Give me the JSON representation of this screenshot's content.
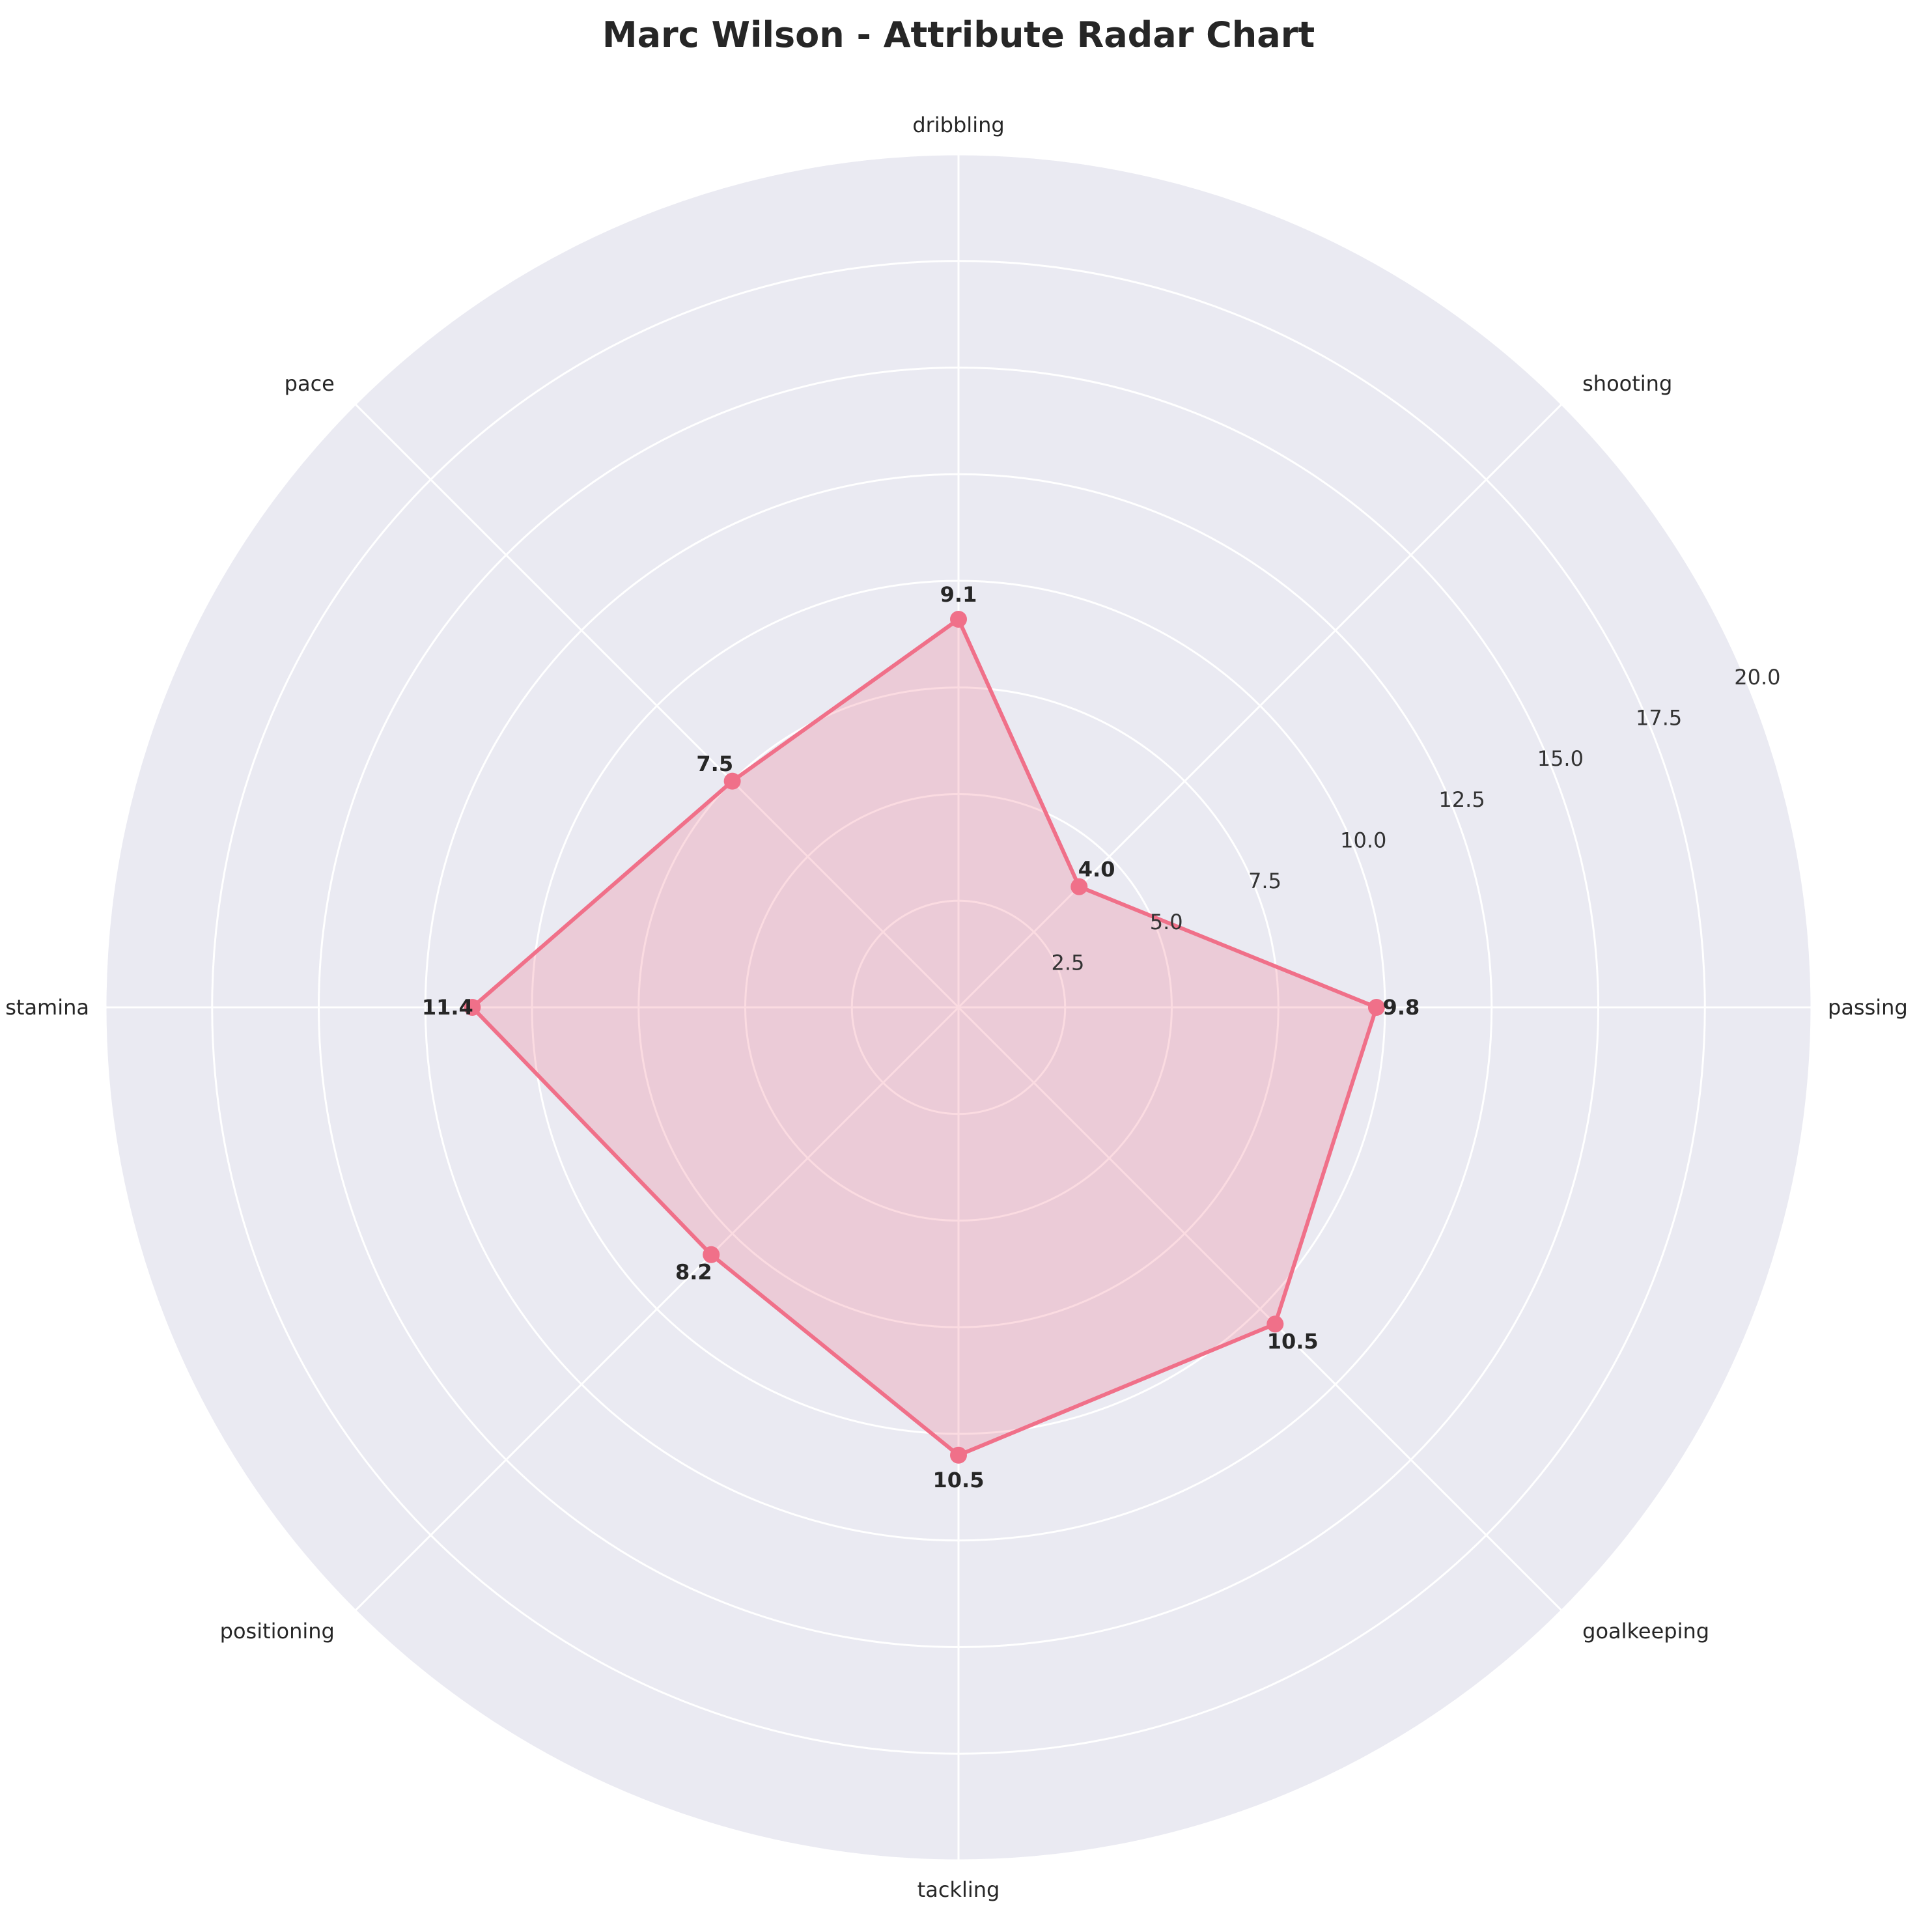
{
  "chart_data": {
    "type": "radar",
    "title": "Marc Wilson - Attribute Radar Chart",
    "categories": [
      "passing",
      "shooting",
      "dribbling",
      "pace",
      "stamina",
      "positioning",
      "tackling",
      "goalkeeping"
    ],
    "series": [
      {
        "values": [
          9.8,
          4.0,
          9.1,
          7.5,
          11.4,
          8.2,
          10.5,
          10.5
        ]
      }
    ],
    "data_labels": [
      "9.8",
      "4.0",
      "9.1",
      "7.5",
      "11.4",
      "8.2",
      "10.5",
      "10.5"
    ],
    "rlim": [
      0,
      20
    ],
    "rticks": [
      2.5,
      5.0,
      7.5,
      10.0,
      12.5,
      15.0,
      17.5,
      20.0
    ],
    "rtick_labels": [
      "2.5",
      "5.0",
      "7.5",
      "10.0",
      "12.5",
      "15.0",
      "17.5",
      "20.0"
    ],
    "grid": true,
    "colors": {
      "series": "#f07089",
      "fill": "#f07089",
      "background": "#eaeaf2",
      "grid": "#ffffff"
    }
  }
}
